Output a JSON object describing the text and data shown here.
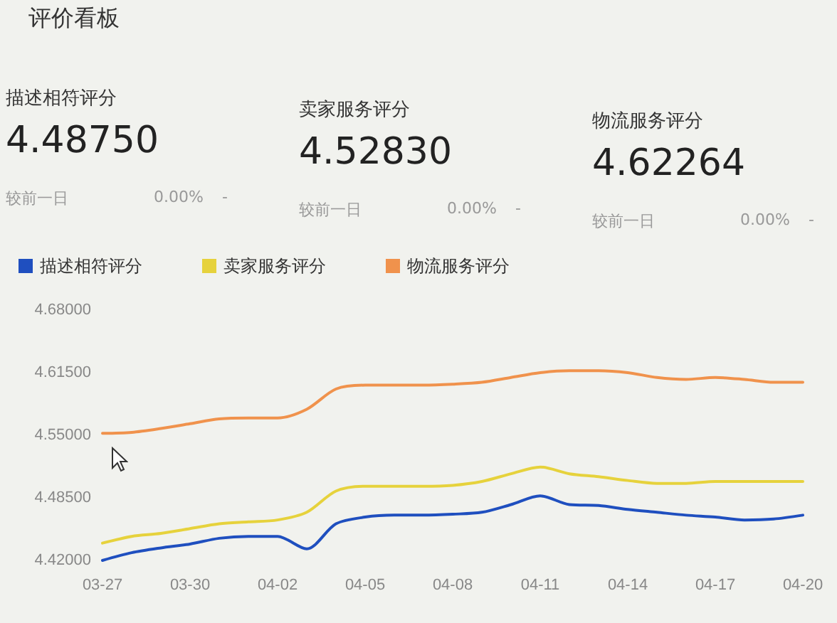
{
  "chart_data": [
    {
      "type": "other",
      "title": "评价看板",
      "annotations": [
        "描述相符评分",
        "4.48750",
        "较前一日",
        "0.00%",
        "-",
        "卖家服务评分",
        "4.52830",
        "较前一日",
        "0.00%",
        "-",
        "物流服务评分",
        "4.62264",
        "较前一日",
        "0.00%",
        "-"
      ]
    },
    {
      "type": "line",
      "categories": [
        "03-27",
        null,
        null,
        "03-30",
        null,
        null,
        "04-02",
        null,
        null,
        "04-05",
        null,
        null,
        "04-08",
        null,
        null,
        "04-11",
        null,
        null,
        "04-14",
        null,
        null,
        "04-17",
        null,
        null,
        "04-20"
      ],
      "series": [
        {
          "name": "描述相符评分",
          "color": "#1f4fbf",
          "values": [
            4.42,
            4.428,
            4.433,
            4.437,
            4.443,
            4.445,
            4.445,
            4.432,
            4.458,
            4.465,
            4.467,
            4.467,
            4.468,
            4.47,
            4.478,
            4.487,
            4.478,
            4.477,
            4.473,
            4.47,
            4.467,
            4.465,
            4.462,
            4.463,
            4.467
          ]
        },
        {
          "name": "卖家服务评分",
          "color": "#e6d23c",
          "values": [
            4.438,
            4.445,
            4.448,
            4.453,
            4.458,
            4.46,
            4.462,
            4.47,
            4.492,
            4.497,
            4.497,
            4.497,
            4.498,
            4.502,
            4.51,
            4.517,
            4.51,
            4.507,
            4.503,
            4.5,
            4.5,
            4.502,
            4.502,
            4.502,
            4.502
          ]
        },
        {
          "name": "物流服务评分",
          "color": "#f0924c",
          "values": [
            4.552,
            4.553,
            4.557,
            4.562,
            4.567,
            4.568,
            4.568,
            4.577,
            4.598,
            4.602,
            4.602,
            4.602,
            4.603,
            4.605,
            4.61,
            4.615,
            4.617,
            4.617,
            4.615,
            4.61,
            4.608,
            4.61,
            4.608,
            4.605,
            4.605
          ]
        }
      ],
      "ylim": [
        4.42,
        4.68
      ],
      "yticks": [
        {
          "value": 4.42,
          "label": "4.42000"
        },
        {
          "value": 4.485,
          "label": "4.48500"
        },
        {
          "value": 4.55,
          "label": "4.55000"
        },
        {
          "value": 4.615,
          "label": "4.61500"
        },
        {
          "value": 4.68,
          "label": "4.68000"
        }
      ],
      "grid": false,
      "legend": "top left",
      "marker": "none",
      "line_style": "solid"
    }
  ]
}
